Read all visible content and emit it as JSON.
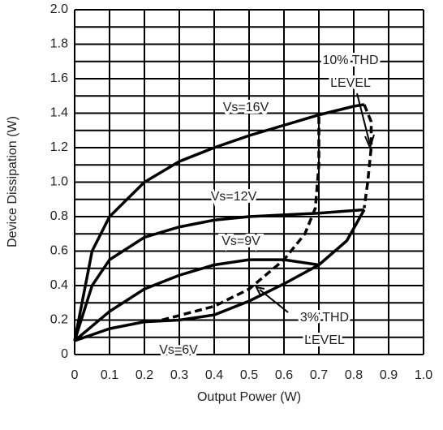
{
  "chart_data": {
    "type": "line",
    "xlabel": "Output Power (W)",
    "ylabel": "Device Dissipation (W)",
    "xlim": [
      0,
      1
    ],
    "ylim": [
      0,
      2
    ],
    "xticks": [
      0,
      0.1,
      0.2,
      0.3,
      0.4,
      0.5,
      0.6,
      0.7,
      0.8,
      0.9,
      {
        "value": 1,
        "label": "1.0"
      }
    ],
    "yticks": [
      0,
      0.2,
      0.4,
      0.6,
      0.8,
      {
        "value": 1,
        "label": "1.0"
      },
      1.2,
      1.4,
      1.6,
      1.8,
      {
        "value": 2,
        "label": "2.0"
      }
    ],
    "y_minor_ticks": [
      0.1,
      0.3,
      0.5,
      0.7,
      0.9,
      1.1,
      1.3,
      1.5,
      1.7,
      1.9
    ],
    "grid": true,
    "series": [
      {
        "name": "Vs=16V",
        "color": "#000000",
        "style": "solid",
        "x": [
          0,
          0.05,
          0.1,
          0.2,
          0.3,
          0.4,
          0.5,
          0.6,
          0.7,
          0.8,
          0.83
        ],
        "values": [
          0.08,
          0.6,
          0.8,
          1.0,
          1.12,
          1.2,
          1.27,
          1.33,
          1.39,
          1.44,
          1.45
        ]
      },
      {
        "name": "Vs=12V",
        "color": "#000000",
        "style": "solid",
        "x": [
          0,
          0.05,
          0.1,
          0.2,
          0.3,
          0.4,
          0.5,
          0.6,
          0.7,
          0.83
        ],
        "values": [
          0.08,
          0.4,
          0.55,
          0.68,
          0.74,
          0.78,
          0.8,
          0.81,
          0.82,
          0.84
        ]
      },
      {
        "name": "Vs=9V",
        "color": "#000000",
        "style": "solid",
        "x": [
          0,
          0.1,
          0.2,
          0.3,
          0.4,
          0.5,
          0.6,
          0.7
        ],
        "values": [
          0.08,
          0.25,
          0.38,
          0.46,
          0.52,
          0.55,
          0.55,
          0.52
        ]
      },
      {
        "name": "Vs=6V",
        "color": "#000000",
        "style": "solid",
        "x": [
          0,
          0.1,
          0.2,
          0.3,
          0.4,
          0.5,
          0.6,
          0.7,
          0.78,
          0.83
        ],
        "values": [
          0.08,
          0.15,
          0.19,
          0.2,
          0.23,
          0.31,
          0.41,
          0.52,
          0.66,
          0.84
        ]
      },
      {
        "color": "#000000",
        "style": "dashed",
        "x": [
          0.83,
          0.85,
          0.85,
          0.84,
          0.83
        ],
        "values": [
          1.45,
          1.35,
          1.2,
          1.0,
          0.85
        ]
      },
      {
        "color": "#000000",
        "style": "dashed",
        "x": [
          0.25,
          0.4,
          0.5,
          0.6,
          0.66,
          0.69,
          0.7,
          0.7
        ],
        "values": [
          0.2,
          0.28,
          0.38,
          0.55,
          0.7,
          0.85,
          1.1,
          1.39
        ]
      }
    ],
    "annotations": [
      "10% THD",
      "LEVEL",
      "3% THD",
      "LEVEL"
    ]
  }
}
